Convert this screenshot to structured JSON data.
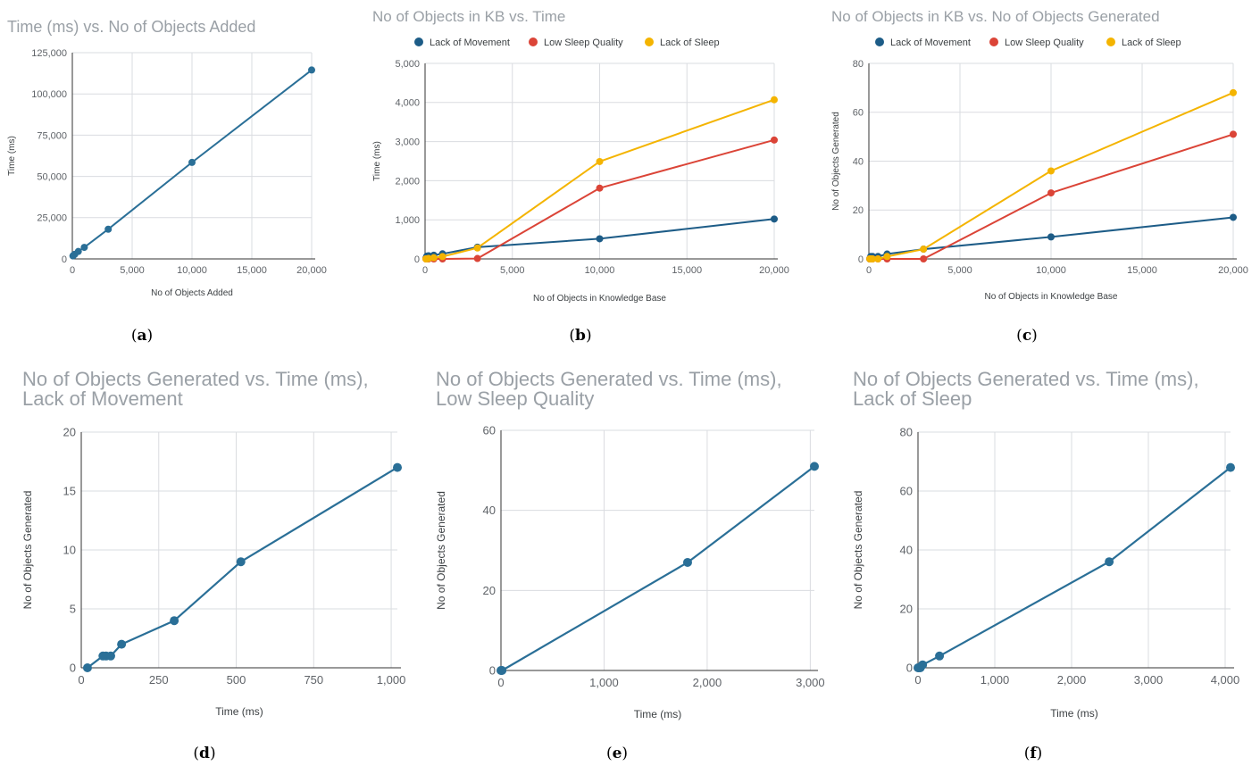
{
  "chart_data": [
    {
      "id": "a",
      "caption": "(a)",
      "type": "line",
      "title": [
        "Time (ms) vs. No of Objects Added"
      ],
      "xlabel": "No of Objects Added",
      "ylabel": "Time (ms)",
      "xlim": [
        0,
        20000
      ],
      "ylim": [
        0,
        125000
      ],
      "xticks": [
        0,
        5000,
        10000,
        15000,
        20000
      ],
      "xtick_labels": [
        "0",
        "5,000",
        "10,000",
        "15,000",
        "20,000"
      ],
      "yticks": [
        0,
        25000,
        50000,
        75000,
        100000,
        125000
      ],
      "ytick_labels": [
        "0",
        "25,000",
        "50,000",
        "75,000",
        "100,000",
        "125,000"
      ],
      "grid": true,
      "legend": [],
      "series": [
        {
          "color": "#2a6f97",
          "x": [
            50,
            100,
            200,
            500,
            1000,
            3000,
            10000,
            20000
          ],
          "y": [
            1800,
            2200,
            2800,
            4500,
            7000,
            18000,
            58500,
            114500
          ]
        }
      ]
    },
    {
      "id": "b",
      "caption": "(b)",
      "type": "line",
      "title": [
        "No of Objects in KB vs. Time"
      ],
      "xlabel": "No of Objects in Knowledge Base",
      "ylabel": "Time (ms)",
      "xlim": [
        0,
        20000
      ],
      "ylim": [
        0,
        5000
      ],
      "xticks": [
        0,
        5000,
        10000,
        15000,
        20000
      ],
      "xtick_labels": [
        "0",
        "5,000",
        "10,000",
        "15,000",
        "20,000"
      ],
      "yticks": [
        0,
        1000,
        2000,
        3000,
        4000,
        5000
      ],
      "ytick_labels": [
        "0",
        "1,000",
        "2,000",
        "3,000",
        "4,000",
        "5,000"
      ],
      "grid": true,
      "legend": [
        "Lack of Movement",
        "Low Sleep Quality",
        "Lack of Sleep"
      ],
      "series": [
        {
          "name": "Lack of Movement",
          "color": "#1d5c87",
          "x": [
            50,
            100,
            200,
            500,
            1000,
            3000,
            10000,
            20000
          ],
          "y": [
            20,
            70,
            80,
            95,
            130,
            300,
            515,
            1020
          ]
        },
        {
          "name": "Low Sleep Quality",
          "color": "#db4437",
          "x": [
            50,
            100,
            200,
            500,
            1000,
            3000,
            10000,
            20000
          ],
          "y": [
            0,
            0,
            0,
            0,
            0,
            10,
            1810,
            3040
          ]
        },
        {
          "name": "Lack of Sleep",
          "color": "#f4b400",
          "x": [
            50,
            100,
            200,
            500,
            1000,
            3000,
            10000,
            20000
          ],
          "y": [
            0,
            0,
            10,
            30,
            60,
            280,
            2490,
            4070
          ]
        }
      ]
    },
    {
      "id": "c",
      "caption": "(c)",
      "type": "line",
      "title": [
        "No of Objects in KB vs. No of Objects Generated"
      ],
      "xlabel": "No of Objects in Knowledge Base",
      "ylabel": "No of Objects Generated",
      "xlim": [
        0,
        20000
      ],
      "ylim": [
        0,
        80
      ],
      "xticks": [
        0,
        5000,
        10000,
        15000,
        20000
      ],
      "xtick_labels": [
        "0",
        "5,000",
        "10,000",
        "15,000",
        "20,000"
      ],
      "yticks": [
        0,
        20,
        40,
        60,
        80
      ],
      "ytick_labels": [
        "0",
        "20",
        "40",
        "60",
        "80"
      ],
      "grid": true,
      "legend": [
        "Lack of Movement",
        "Low Sleep Quality",
        "Lack of Sleep"
      ],
      "series": [
        {
          "name": "Lack of Movement",
          "color": "#1d5c87",
          "x": [
            50,
            100,
            200,
            500,
            1000,
            3000,
            10000,
            20000
          ],
          "y": [
            0,
            1,
            1,
            1,
            2,
            4,
            9,
            17
          ]
        },
        {
          "name": "Low Sleep Quality",
          "color": "#db4437",
          "x": [
            50,
            100,
            200,
            500,
            1000,
            3000,
            10000,
            20000
          ],
          "y": [
            0,
            0,
            0,
            0,
            0,
            0,
            27,
            51
          ]
        },
        {
          "name": "Lack of Sleep",
          "color": "#f4b400",
          "x": [
            50,
            100,
            200,
            500,
            1000,
            3000,
            10000,
            20000
          ],
          "y": [
            0,
            0,
            0,
            0,
            1,
            4,
            36,
            68
          ]
        }
      ]
    },
    {
      "id": "d",
      "caption": "(d)",
      "type": "line",
      "title": [
        "No of Objects Generated vs. Time (ms),",
        "Lack of Movement"
      ],
      "xlabel": "Time (ms)",
      "ylabel": "No of Objects Generated",
      "xlim": [
        0,
        1020
      ],
      "ylim": [
        0,
        20
      ],
      "xticks": [
        0,
        250,
        500,
        750,
        1000
      ],
      "xtick_labels": [
        "0",
        "250",
        "500",
        "750",
        "1,000"
      ],
      "yticks": [
        0,
        5,
        10,
        15,
        20
      ],
      "ytick_labels": [
        "0",
        "5",
        "10",
        "15",
        "20"
      ],
      "grid": true,
      "legend": [],
      "series": [
        {
          "color": "#2a6f97",
          "x": [
            20,
            70,
            80,
            95,
            130,
            300,
            515,
            1020
          ],
          "y": [
            0,
            1,
            1,
            1,
            2,
            4,
            9,
            17
          ]
        }
      ]
    },
    {
      "id": "e",
      "caption": "(e)",
      "type": "line",
      "title": [
        "No of Objects Generated vs. Time (ms),",
        "Low Sleep Quality"
      ],
      "xlabel": "Time (ms)",
      "ylabel": "No of Objects Generated",
      "xlim": [
        0,
        3040
      ],
      "ylim": [
        0,
        60
      ],
      "xticks": [
        0,
        1000,
        2000,
        3000
      ],
      "xtick_labels": [
        "0",
        "1,000",
        "2,000",
        "3,000"
      ],
      "yticks": [
        0,
        20,
        40,
        60
      ],
      "ytick_labels": [
        "0",
        "20",
        "40",
        "60"
      ],
      "grid": true,
      "legend": [],
      "series": [
        {
          "color": "#2a6f97",
          "x": [
            0,
            5,
            10,
            1810,
            3040
          ],
          "y": [
            0,
            0,
            0,
            27,
            51
          ]
        }
      ]
    },
    {
      "id": "f",
      "caption": "(f)",
      "type": "line",
      "title": [
        "No of Objects Generated vs. Time (ms),",
        "Lack of Sleep"
      ],
      "xlabel": "Time (ms)",
      "ylabel": "No of Objects Generated",
      "xlim": [
        0,
        4070
      ],
      "ylim": [
        0,
        80
      ],
      "xticks": [
        0,
        1000,
        2000,
        3000,
        4000
      ],
      "xtick_labels": [
        "0",
        "1,000",
        "2,000",
        "3,000",
        "4,000"
      ],
      "yticks": [
        0,
        20,
        40,
        60,
        80
      ],
      "ytick_labels": [
        "0",
        "20",
        "40",
        "60",
        "80"
      ],
      "grid": true,
      "legend": [],
      "series": [
        {
          "color": "#2a6f97",
          "x": [
            0,
            10,
            30,
            60,
            280,
            2490,
            4070
          ],
          "y": [
            0,
            0,
            0,
            1,
            4,
            36,
            68
          ]
        }
      ]
    }
  ]
}
